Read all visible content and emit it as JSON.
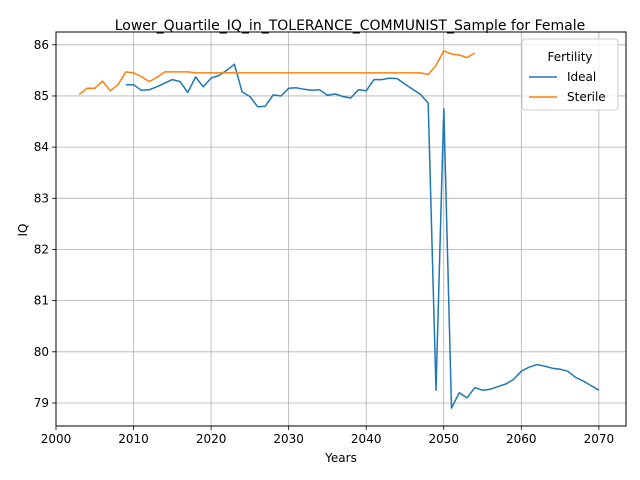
{
  "chart_data": {
    "type": "line",
    "title": "Lower_Quartile_IQ_in_TOLERANCE_COMMUNIST_Sample for Female",
    "xlabel": "Years",
    "ylabel": "IQ",
    "xlim": [
      2000,
      2073.5
    ],
    "ylim": [
      78.55,
      86.25
    ],
    "xticks": [
      2000,
      2010,
      2020,
      2030,
      2040,
      2050,
      2060,
      2070
    ],
    "yticks": [
      79,
      80,
      81,
      82,
      83,
      84,
      85,
      86
    ],
    "grid": true,
    "legend": {
      "title": "Fertility",
      "position": "top-right"
    },
    "series": [
      {
        "name": "Ideal",
        "color": "#1f77b4",
        "x": [
          2009,
          2010,
          2011,
          2012,
          2013,
          2014,
          2015,
          2016,
          2017,
          2018,
          2019,
          2020,
          2021,
          2022,
          2023,
          2024,
          2025,
          2026,
          2027,
          2028,
          2029,
          2030,
          2031,
          2032,
          2033,
          2034,
          2035,
          2036,
          2037,
          2038,
          2039,
          2040,
          2041,
          2042,
          2043,
          2044,
          2045,
          2046,
          2047,
          2048,
          2049,
          2050,
          2051,
          2052,
          2053,
          2054,
          2055,
          2056,
          2057,
          2058,
          2059,
          2060,
          2061,
          2062,
          2063,
          2064,
          2065,
          2066,
          2067,
          2068,
          2069,
          2070
        ],
        "y": [
          85.22,
          85.22,
          85.11,
          85.12,
          85.18,
          85.25,
          85.32,
          85.28,
          85.07,
          85.37,
          85.18,
          85.35,
          85.4,
          85.5,
          85.62,
          85.08,
          84.99,
          84.79,
          84.8,
          85.02,
          85.0,
          85.15,
          85.16,
          85.13,
          85.11,
          85.12,
          85.01,
          85.04,
          84.99,
          84.96,
          85.12,
          85.1,
          85.32,
          85.32,
          85.35,
          85.34,
          85.23,
          85.13,
          85.03,
          84.86,
          79.25,
          84.75,
          78.9,
          79.2,
          79.1,
          79.3,
          79.25,
          79.27,
          79.32,
          79.37,
          79.46,
          79.62,
          79.7,
          79.75,
          79.72,
          79.68,
          79.66,
          79.62,
          79.5,
          79.43,
          79.34,
          79.25
        ]
      },
      {
        "name": "Sterile",
        "color": "#ff7f0e",
        "x": [
          2003,
          2004,
          2005,
          2006,
          2007,
          2008,
          2009,
          2010,
          2011,
          2012,
          2013,
          2014,
          2015,
          2016,
          2017,
          2018,
          2019,
          2020,
          2021,
          2022,
          2023,
          2024,
          2025,
          2026,
          2027,
          2028,
          2029,
          2030,
          2031,
          2032,
          2033,
          2034,
          2035,
          2036,
          2037,
          2038,
          2039,
          2040,
          2041,
          2042,
          2043,
          2044,
          2045,
          2046,
          2047,
          2048,
          2049,
          2050,
          2051,
          2052,
          2053,
          2054
        ],
        "y": [
          85.03,
          85.15,
          85.15,
          85.29,
          85.1,
          85.22,
          85.47,
          85.45,
          85.38,
          85.28,
          85.36,
          85.47,
          85.47,
          85.47,
          85.47,
          85.45,
          85.45,
          85.45,
          85.45,
          85.45,
          85.45,
          85.45,
          85.45,
          85.45,
          85.45,
          85.45,
          85.45,
          85.45,
          85.45,
          85.45,
          85.45,
          85.45,
          85.45,
          85.45,
          85.45,
          85.45,
          85.45,
          85.45,
          85.45,
          85.45,
          85.45,
          85.45,
          85.45,
          85.45,
          85.45,
          85.42,
          85.6,
          85.88,
          85.82,
          85.8,
          85.75,
          85.84
        ]
      }
    ]
  }
}
